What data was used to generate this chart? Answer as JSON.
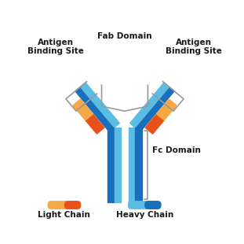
{
  "fig_width": 3.11,
  "fig_height": 3.1,
  "dpi": 100,
  "bg_color": "#ffffff",
  "light_chain_light": "#f5a843",
  "light_chain_dark": "#e8521a",
  "heavy_chain_light": "#5bbde4",
  "heavy_chain_dark": "#1a6fbb",
  "bracket_color": "#999999",
  "text_color": "#1a1a1a",
  "labels": {
    "antigen_left": "Antigen\nBinding Site",
    "antigen_right": "Antigen\nBinding Site",
    "fab": "Fab Domain",
    "fc": "Fc Domain",
    "light_chain": "Light Chain",
    "heavy_chain": "Heavy Chain"
  }
}
